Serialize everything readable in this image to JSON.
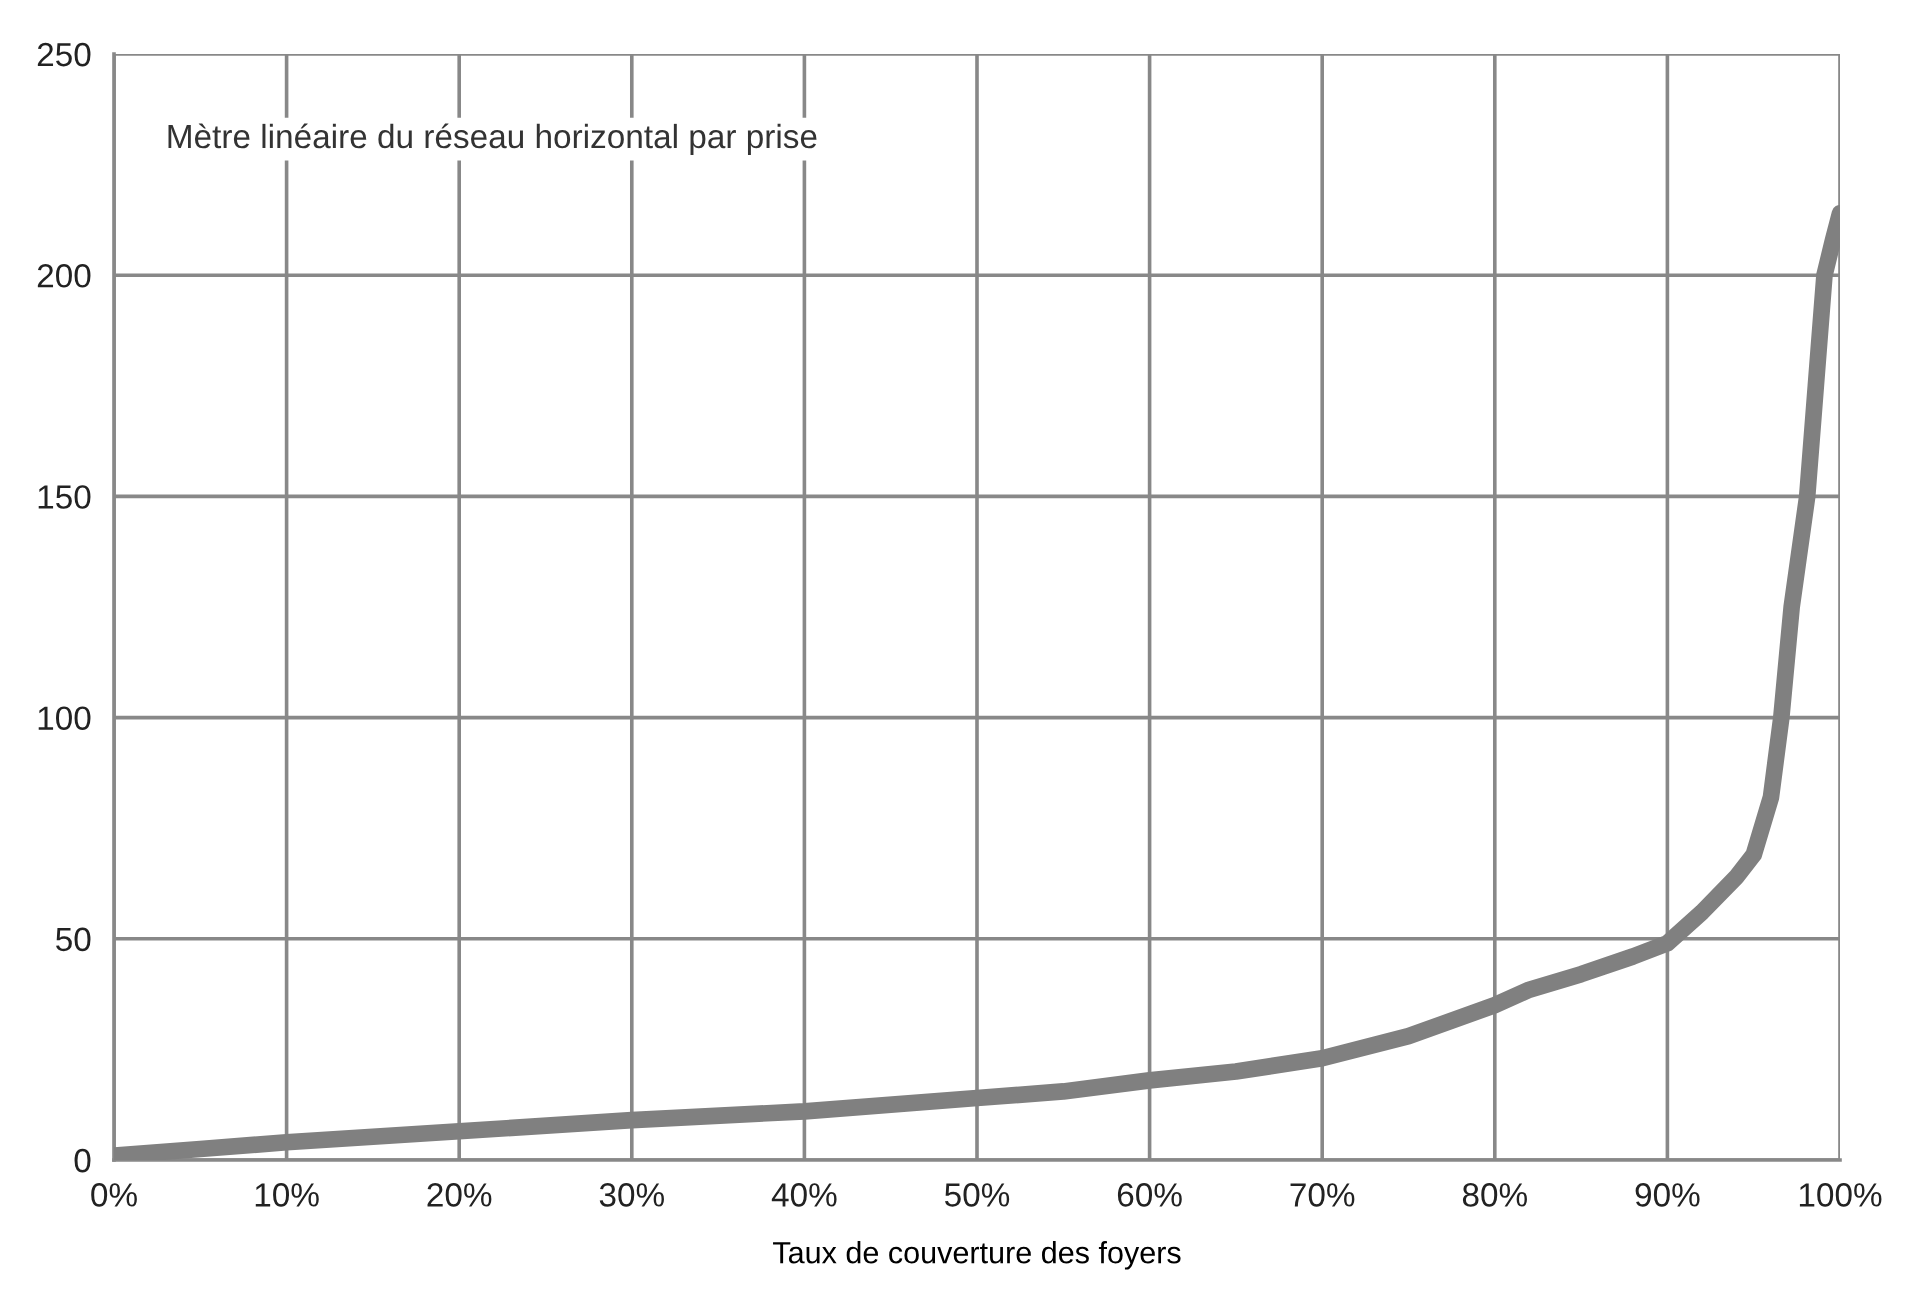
{
  "chart_data": {
    "type": "line",
    "title": "Mètre linéaire du réseau horizontal par prise",
    "xlabel": "Taux de couverture des foyers",
    "x": [
      0,
      5,
      10,
      20,
      30,
      40,
      50,
      55,
      60,
      65,
      70,
      75,
      80,
      82,
      85,
      88,
      90,
      92,
      94,
      95,
      96,
      96.6,
      97.2,
      98.1,
      98.6,
      99.1,
      99.6,
      100
    ],
    "series": [
      {
        "color": "#808080",
        "values": [
          1,
          2.5,
          4,
          6.5,
          9,
          11,
          14,
          15.5,
          18,
          20,
          23,
          28,
          35,
          38.5,
          42,
          46,
          49,
          56,
          64,
          69,
          82,
          100,
          125,
          150,
          175,
          200,
          208,
          214
        ]
      }
    ],
    "xlim": [
      0,
      100
    ],
    "xticks": [
      {
        "value": 0,
        "label": "0%"
      },
      {
        "value": 10,
        "label": "10%"
      },
      {
        "value": 20,
        "label": "20%"
      },
      {
        "value": 30,
        "label": "30%"
      },
      {
        "value": 40,
        "label": "40%"
      },
      {
        "value": 50,
        "label": "50%"
      },
      {
        "value": 60,
        "label": "60%"
      },
      {
        "value": 70,
        "label": "70%"
      },
      {
        "value": 80,
        "label": "80%"
      },
      {
        "value": 90,
        "label": "90%"
      },
      {
        "value": 100,
        "label": "100%"
      }
    ],
    "ylim": [
      0,
      250
    ],
    "yticks": [
      0,
      50,
      100,
      150,
      200,
      250
    ],
    "grid": true,
    "marker": "none",
    "line_style": "solid"
  }
}
